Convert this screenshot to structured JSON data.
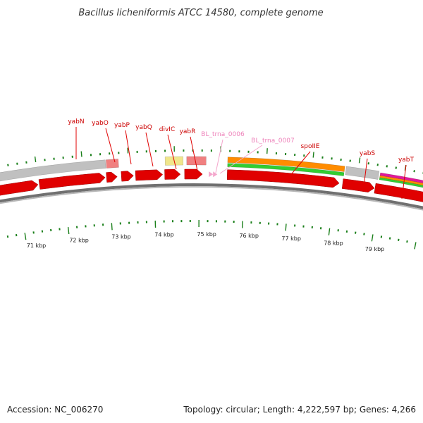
{
  "title": "Bacillus licheniformis ATCC 14580, complete genome",
  "footer": {
    "accession": "Accession: NC_006270",
    "summary": "Topology: circular; Length: 4,222,597 bp; Genes: 4,266"
  },
  "scale_labels": [
    "71 kbp",
    "72 kbp",
    "73 kbp",
    "74 kbp",
    "75 kbp",
    "76 kbp",
    "77 kbp",
    "78 kbp",
    "79 kbp"
  ],
  "gene_labels": [
    {
      "name": "yabN",
      "kind": "gene"
    },
    {
      "name": "yabO",
      "kind": "gene"
    },
    {
      "name": "yabP",
      "kind": "gene"
    },
    {
      "name": "yabQ",
      "kind": "gene"
    },
    {
      "name": "divIC",
      "kind": "gene"
    },
    {
      "name": "yabR",
      "kind": "gene"
    },
    {
      "name": "BL_trna_0006",
      "kind": "trna"
    },
    {
      "name": "BL_trna_0007",
      "kind": "trna"
    },
    {
      "name": "spoIIE",
      "kind": "gene"
    },
    {
      "name": "yabS",
      "kind": "gene"
    },
    {
      "name": "yabT",
      "kind": "gene"
    }
  ],
  "colors": {
    "cds": "#e00000",
    "gene_gray": "#c0c0c0",
    "pink_feature": "#f08080",
    "yellow_feature": "#f0e68c",
    "orange_feature": "#ff8c00",
    "green_feature": "#32cd32",
    "magenta_feature": "#e0189a",
    "trna": "#f4a6cc",
    "tick": "#1a7f1a",
    "backbone": "#888888"
  }
}
